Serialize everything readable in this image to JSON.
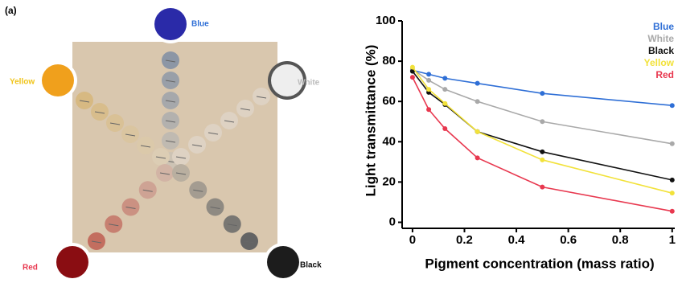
{
  "panel_label": "(a)",
  "photo": {
    "labels": {
      "blue": "Blue",
      "yellow": "Yellow",
      "white": "White",
      "red": "Red",
      "black": "Black"
    }
  },
  "chart_data": {
    "type": "line",
    "ylabel": "Light transmittance (%)",
    "xlabel": "Pigment concentration (mass ratio)",
    "x": [
      0,
      0.0625,
      0.125,
      0.25,
      0.5,
      1
    ],
    "series": [
      {
        "name": "Blue",
        "color": "#2f6fd6",
        "values": [
          75.5,
          73.5,
          71.5,
          69,
          64,
          58
        ]
      },
      {
        "name": "White",
        "color": "#a9a9a9",
        "values": [
          76,
          70.5,
          66,
          60,
          50,
          39
        ]
      },
      {
        "name": "Black",
        "color": "#111111",
        "values": [
          75,
          64.5,
          58.5,
          45,
          35,
          21
        ]
      },
      {
        "name": "Yellow",
        "color": "#f2e23a",
        "values": [
          77,
          66,
          59,
          45,
          31,
          14.5
        ]
      },
      {
        "name": "Red",
        "color": "#e8384f",
        "values": [
          72,
          56,
          46.5,
          32,
          17.5,
          5.5
        ]
      }
    ],
    "xlim": [
      -0.04,
      1.01
    ],
    "ylim": [
      -3,
      100
    ],
    "xticks": [
      0,
      0.2,
      0.4,
      0.6,
      0.8,
      1
    ],
    "yticks": [
      0,
      20,
      40,
      60,
      80,
      100
    ]
  }
}
